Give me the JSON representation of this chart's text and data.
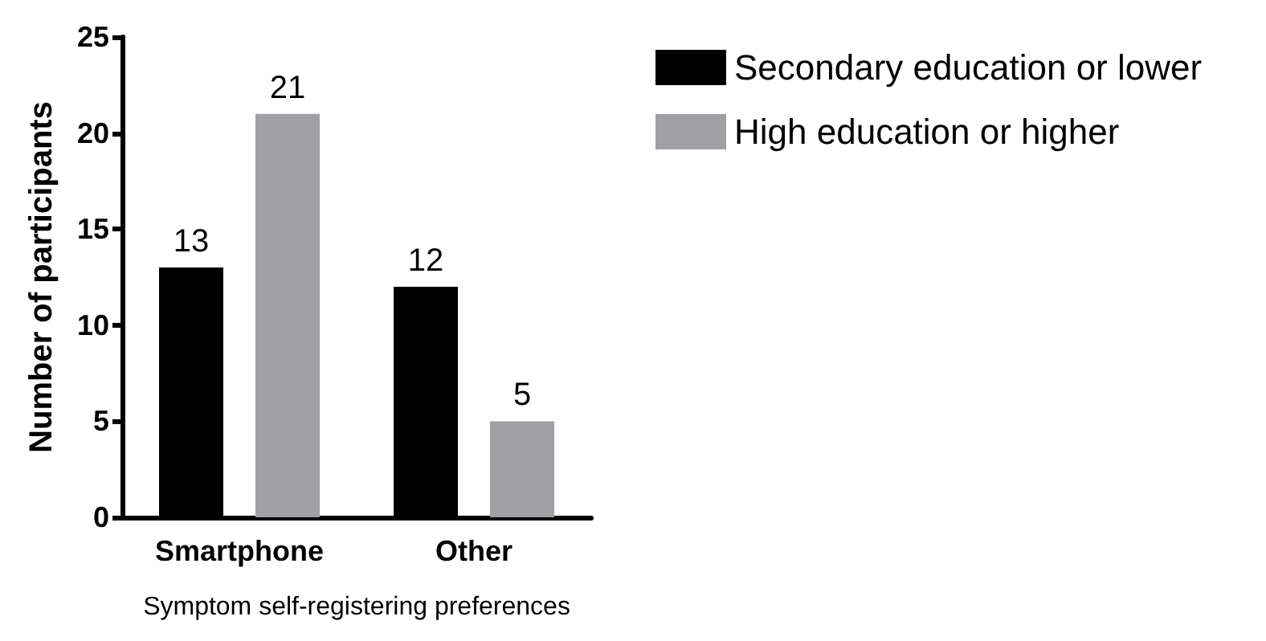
{
  "chart_data": {
    "type": "bar",
    "xlabel": "Symptom self-registering preferences",
    "ylabel": "Number of participants",
    "categories": [
      "Smartphone",
      "Other"
    ],
    "series": [
      {
        "name": "Secondary education or lower",
        "color": "#000000",
        "values": [
          13,
          12
        ]
      },
      {
        "name": "High education or higher",
        "color": "#a0a0a4",
        "values": [
          21,
          5
        ]
      }
    ],
    "ylim": [
      0,
      25
    ],
    "yticks": [
      0,
      5,
      10,
      15,
      20,
      25
    ],
    "data_labels": true,
    "grid": false,
    "legend": "top right"
  }
}
